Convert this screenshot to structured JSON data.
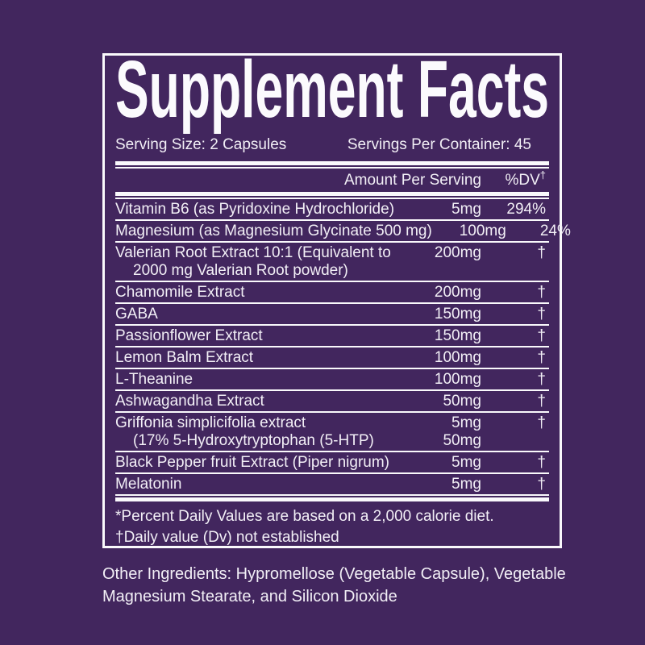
{
  "label": {
    "title": "Supplement Facts",
    "serving_size": "Serving Size: 2 Capsules",
    "servings_per_container": "Servings Per Container: 45",
    "columns": {
      "amount": "Amount Per Serving",
      "dv": "%DV",
      "dv_sup": "†"
    },
    "rows": [
      {
        "name": "Vitamin B6 (as Pyridoxine Hydrochloride)",
        "amount": "5mg",
        "dv": "294%"
      },
      {
        "name": "Magnesium (as Magnesium Glycinate 500 mg)",
        "amount": "100mg",
        "dv": "24%"
      },
      {
        "name": "Valerian Root Extract 10:1 (Equivalent to",
        "name2": "2000 mg Valerian Root powder)",
        "amount": "200mg",
        "amount2": "",
        "dv": "†"
      },
      {
        "name": "Chamomile Extract",
        "amount": "200mg",
        "dv": "†"
      },
      {
        "name": "GABA",
        "amount": "150mg",
        "dv": "†"
      },
      {
        "name": "Passionflower Extract",
        "amount": "150mg",
        "dv": "†"
      },
      {
        "name": "Lemon Balm Extract",
        "amount": "100mg",
        "dv": "†"
      },
      {
        "name": "L-Theanine",
        "amount": "100mg",
        "dv": "†"
      },
      {
        "name": "Ashwagandha Extract",
        "amount": "50mg",
        "dv": "†"
      },
      {
        "name": "Griffonia simplicifolia extract",
        "name2": "(17% 5-Hydroxytryptophan (5-HTP)",
        "amount": "5mg",
        "amount2": "50mg",
        "dv": "†"
      },
      {
        "name": "Black Pepper fruit Extract (Piper nigrum)",
        "amount": "5mg",
        "dv": "†"
      },
      {
        "name": "Melatonin",
        "amount": "5mg",
        "dv": "†"
      }
    ],
    "footnotes": {
      "percent_dv": "*Percent Daily Values are based on a 2,000 calorie diet.",
      "daily_value": "†Daily value (Dv) not established"
    }
  },
  "other_ingredients": "Other Ingredients: Hypromellose (Vegetable Capsule), Vegetable Magnesium Stearate, and Silicon Dioxide",
  "colors": {
    "background": "#42265e",
    "text": "#f2eff6",
    "rules": "#faf9fc"
  }
}
